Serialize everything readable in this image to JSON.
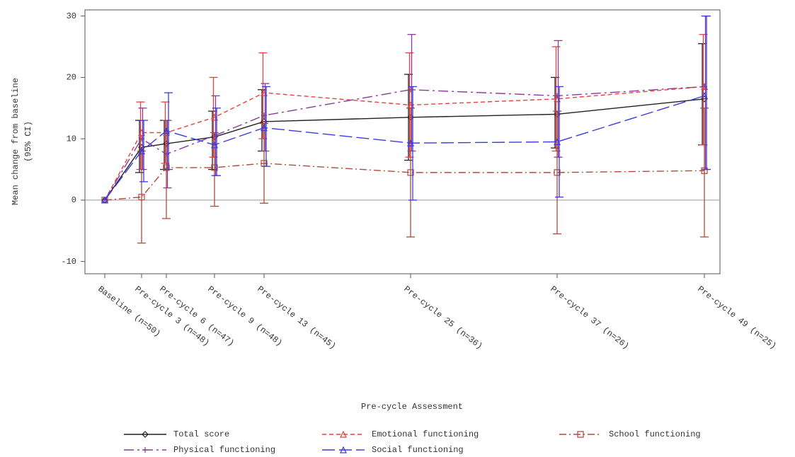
{
  "chart_data": {
    "type": "line",
    "ylabel": [
      "Mean change from baseline",
      "(95% CI)"
    ],
    "xlabel": "Pre-cycle Assessment",
    "categories": [
      "Baseline (n=50)",
      "Pre-cycle 3 (n=48)",
      "Pre-cycle 6 (n=47)",
      "Pre-cycle 9 (n=48)",
      "Pre-cycle 13 (n=45)",
      "Pre-cycle 25 (n=36)",
      "Pre-cycle 37 (n=26)",
      "Pre-cycle 49 (n=25)"
    ],
    "ylim": [
      -12,
      31
    ],
    "yticks": [
      -10,
      0,
      10,
      20,
      30
    ],
    "reference_line": 0,
    "series": [
      {
        "name": "Total score",
        "color": "#222222",
        "marker": "diamond",
        "dash": "solid",
        "values": [
          0,
          8.6,
          9.2,
          10.3,
          12.8,
          13.5,
          14.0,
          16.5
        ],
        "ci_lower": [
          null,
          4.5,
          5,
          5,
          8,
          6.5,
          8.5,
          9
        ],
        "ci_upper": [
          null,
          13,
          13,
          14.5,
          18,
          20.5,
          20,
          25.5
        ]
      },
      {
        "name": "Emotional functioning",
        "color": "#e8403e",
        "marker": "triangle",
        "dash": "short",
        "values": [
          0,
          11,
          11,
          13.5,
          17.5,
          15.5,
          16.5,
          18.5
        ],
        "ci_lower": [
          null,
          5,
          6,
          7,
          10,
          7,
          8,
          9
        ],
        "ci_upper": [
          null,
          16,
          16,
          20,
          24,
          24,
          25,
          27
        ]
      },
      {
        "name": "School functioning",
        "color": "#b04a3a",
        "marker": "square",
        "dash": "dashdot",
        "values": [
          0,
          0.5,
          5.3,
          5.3,
          6,
          4.5,
          4.5,
          4.8
        ],
        "ci_lower": [
          null,
          -7,
          -3,
          -1,
          -0.5,
          -6,
          -5.5,
          -6
        ],
        "ci_upper": [
          null,
          8,
          13,
          11,
          12.5,
          15,
          14.5,
          15
        ]
      },
      {
        "name": "Physical functioning",
        "color": "#8a3a9a",
        "marker": "plus",
        "dash": "longdashdot",
        "values": [
          0,
          10,
          7.5,
          10.5,
          13.8,
          18,
          17,
          18.5
        ],
        "ci_lower": [
          null,
          5,
          2,
          4,
          8,
          8,
          7,
          5
        ],
        "ci_upper": [
          null,
          15,
          13,
          17,
          19,
          27,
          26,
          30
        ]
      },
      {
        "name": "Social functioning",
        "color": "#3a3ae0",
        "marker": "triangle",
        "dash": "long",
        "values": [
          0,
          8,
          11.3,
          9,
          11.8,
          9.3,
          9.5,
          17
        ],
        "ci_lower": [
          null,
          3,
          5,
          4,
          5.5,
          0,
          0.5,
          5
        ],
        "ci_upper": [
          null,
          13,
          17.5,
          15,
          18.5,
          18.5,
          18.5,
          30
        ]
      }
    ]
  }
}
